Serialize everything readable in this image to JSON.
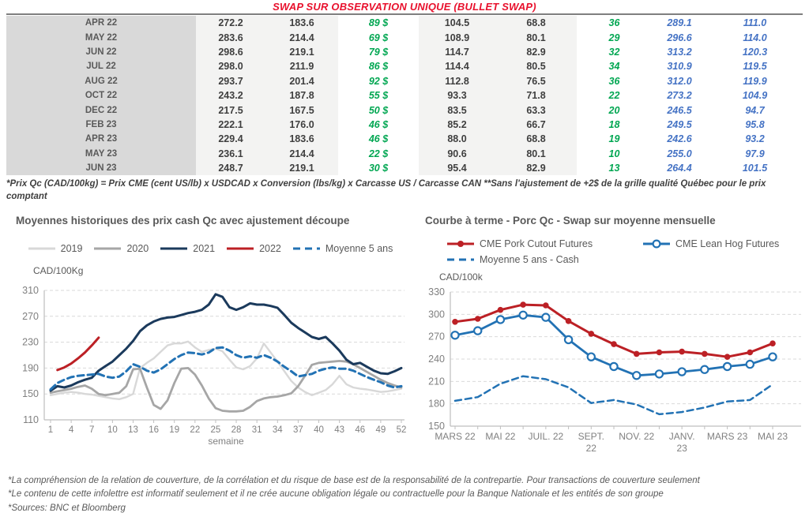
{
  "report": {
    "title": "SWAP SUR OBSERVATION UNIQUE (BULLET SWAP)",
    "table_note": "*Prix Qc (CAD/100kg) = Prix CME (cent US/lb) x USDCAD x Conversion (lbs/kg) x Carcasse US / Carcasse CAN **Sans l'ajustement de +2$ de la grille qualité Québec pour le prix comptant",
    "footer_notes": [
      "*La compréhension de la relation de couverture, de la corrélation et du risque de base est de la responsabilité de la contrepartie. Pour transactions de couverture seulement",
      "*Le contenu de cette infolettre est informatif seulement et il ne crée aucune obligation légale ou contractuelle pour la Banque Nationale et les entités de son groupe",
      "*Sources: BNC et Bloomberg"
    ]
  },
  "table": {
    "rows": [
      [
        "APR 22",
        "272.2",
        "183.6",
        "89 $",
        "104.5",
        "68.8",
        "36",
        "289.1",
        "111.0"
      ],
      [
        "MAY 22",
        "283.6",
        "214.4",
        "69 $",
        "108.9",
        "80.1",
        "29",
        "296.6",
        "114.0"
      ],
      [
        "JUN 22",
        "298.6",
        "219.1",
        "79 $",
        "114.7",
        "82.9",
        "32",
        "313.2",
        "120.3"
      ],
      [
        "JUL 22",
        "298.0",
        "211.9",
        "86 $",
        "114.4",
        "80.5",
        "34",
        "310.9",
        "119.5"
      ],
      [
        "AUG 22",
        "293.7",
        "201.4",
        "92 $",
        "112.8",
        "76.5",
        "36",
        "312.0",
        "119.9"
      ],
      [
        "OCT 22",
        "243.2",
        "187.8",
        "55 $",
        "93.3",
        "71.8",
        "22",
        "273.2",
        "104.9"
      ],
      [
        "DEC 22",
        "217.5",
        "167.5",
        "50 $",
        "83.5",
        "63.3",
        "20",
        "246.5",
        "94.7"
      ],
      [
        "FEB 23",
        "222.1",
        "176.0",
        "46 $",
        "85.2",
        "66.7",
        "18",
        "249.5",
        "95.8"
      ],
      [
        "APR 23",
        "229.4",
        "183.6",
        "46 $",
        "88.0",
        "68.8",
        "19",
        "242.6",
        "93.2"
      ],
      [
        "MAY 23",
        "236.1",
        "214.4",
        "22 $",
        "90.6",
        "80.1",
        "10",
        "255.0",
        "97.9"
      ],
      [
        "JUN 23",
        "248.7",
        "219.1",
        "30 $",
        "95.4",
        "82.9",
        "13",
        "264.4",
        "101.5"
      ]
    ]
  },
  "chart_data": [
    {
      "type": "line",
      "title": "Moyennes historiques des prix cash Qc avec ajustement découpe",
      "ylabel": "CAD/100Kg",
      "xlabel": "semaine",
      "ylim": [
        110,
        310
      ],
      "yticks": [
        110,
        150,
        190,
        230,
        270,
        310
      ],
      "xticks": [
        1,
        4,
        7,
        10,
        13,
        16,
        19,
        22,
        25,
        28,
        31,
        34,
        37,
        40,
        43,
        46,
        49,
        52
      ],
      "x_count": 52,
      "grid": "horizontal-dashed",
      "legend_position": "top",
      "series": [
        {
          "name": "2019",
          "color": "#d8d8d8",
          "style": "solid",
          "width": 2.4,
          "values": [
            148,
            150,
            152,
            153,
            152,
            150,
            149,
            147,
            145,
            143,
            142,
            145,
            150,
            190,
            198,
            205,
            215,
            225,
            228,
            228,
            231,
            222,
            215,
            218,
            220,
            216,
            203,
            191,
            188,
            193,
            205,
            228,
            214,
            200,
            185,
            170,
            160,
            153,
            148,
            152,
            156,
            165,
            178,
            165,
            160,
            158,
            157,
            155,
            153,
            154,
            156,
            158
          ]
        },
        {
          "name": "2020",
          "color": "#a6a6a6",
          "style": "solid",
          "width": 2.8,
          "values": [
            152,
            154,
            156,
            158,
            161,
            163,
            158,
            150,
            148,
            150,
            152,
            162,
            188,
            189,
            160,
            133,
            127,
            140,
            167,
            189,
            190,
            180,
            163,
            143,
            128,
            124,
            123,
            123,
            124,
            130,
            139,
            143,
            145,
            146,
            148,
            151,
            162,
            178,
            195,
            198,
            199,
            200,
            201,
            200,
            196,
            190,
            184,
            178,
            172,
            167,
            163,
            160
          ]
        },
        {
          "name": "2021",
          "color": "#1b3a5c",
          "style": "solid",
          "width": 3,
          "values": [
            155,
            162,
            160,
            163,
            168,
            172,
            175,
            186,
            193,
            200,
            210,
            220,
            232,
            247,
            256,
            262,
            266,
            268,
            269,
            272,
            275,
            277,
            280,
            288,
            304,
            300,
            284,
            280,
            284,
            290,
            288,
            288,
            286,
            283,
            272,
            260,
            252,
            245,
            238,
            235,
            238,
            228,
            217,
            203,
            196,
            198,
            192,
            186,
            182,
            181,
            185,
            190
          ]
        },
        {
          "name": "2022",
          "color": "#bc2025",
          "style": "solid",
          "width": 3,
          "values": [
            null,
            187,
            191,
            197,
            205,
            214,
            225,
            237
          ]
        },
        {
          "name": "Moyenne 5 ans",
          "color": "#2272b4",
          "style": "dashed",
          "width": 3,
          "values": [
            157,
            167,
            172,
            176,
            178,
            179,
            180,
            181,
            177,
            175,
            177,
            185,
            196,
            192,
            186,
            183,
            188,
            196,
            204,
            210,
            214,
            213,
            211,
            214,
            221,
            222,
            217,
            210,
            206,
            208,
            206,
            210,
            206,
            200,
            192,
            185,
            177,
            179,
            181,
            186,
            189,
            191,
            189,
            189,
            186,
            181,
            176,
            172,
            168,
            163,
            160,
            162
          ]
        }
      ]
    },
    {
      "type": "line",
      "title": "Courbe à terme - Porc Qc - Swap sur moyenne mensuelle",
      "ylabel": "CAD/100k",
      "xlabel": "",
      "ylim": [
        150,
        330
      ],
      "yticks": [
        150,
        180,
        210,
        240,
        270,
        300,
        330
      ],
      "xtick_labels": [
        {
          "i": 0,
          "lines": [
            "MARS 22"
          ]
        },
        {
          "i": 2,
          "lines": [
            "MAI 22"
          ]
        },
        {
          "i": 4,
          "lines": [
            "JUIL. 22"
          ]
        },
        {
          "i": 6,
          "lines": [
            "SEPT.",
            "22"
          ]
        },
        {
          "i": 8,
          "lines": [
            "NOV. 22"
          ]
        },
        {
          "i": 10,
          "lines": [
            "JANV.",
            "23"
          ]
        },
        {
          "i": 12,
          "lines": [
            "MARS 23"
          ]
        },
        {
          "i": 14,
          "lines": [
            "MAI 23"
          ]
        }
      ],
      "x_count": 15,
      "grid": "horizontal-dashed",
      "legend_position": "top",
      "series": [
        {
          "name": "CME Pork Cutout Futures",
          "color": "#bc2025",
          "style": "solid",
          "width": 3,
          "marker": "filled-circle",
          "values": [
            290,
            294,
            306,
            313,
            312,
            291,
            274,
            260,
            247,
            249,
            250,
            247,
            243,
            249,
            261
          ]
        },
        {
          "name": "CME Lean Hog Futures",
          "color": "#2272b4",
          "style": "solid",
          "width": 2.8,
          "marker": "open-circle",
          "values": [
            272,
            278,
            293,
            299,
            296,
            266,
            243,
            230,
            218,
            220,
            223,
            226,
            230,
            233,
            243
          ]
        },
        {
          "name": "Moyenne 5 ans - Cash",
          "color": "#2272b4",
          "style": "dashed",
          "width": 2.5,
          "values": [
            184,
            189,
            207,
            217,
            213,
            202,
            181,
            185,
            179,
            166,
            169,
            175,
            183,
            185,
            206
          ]
        }
      ]
    }
  ]
}
